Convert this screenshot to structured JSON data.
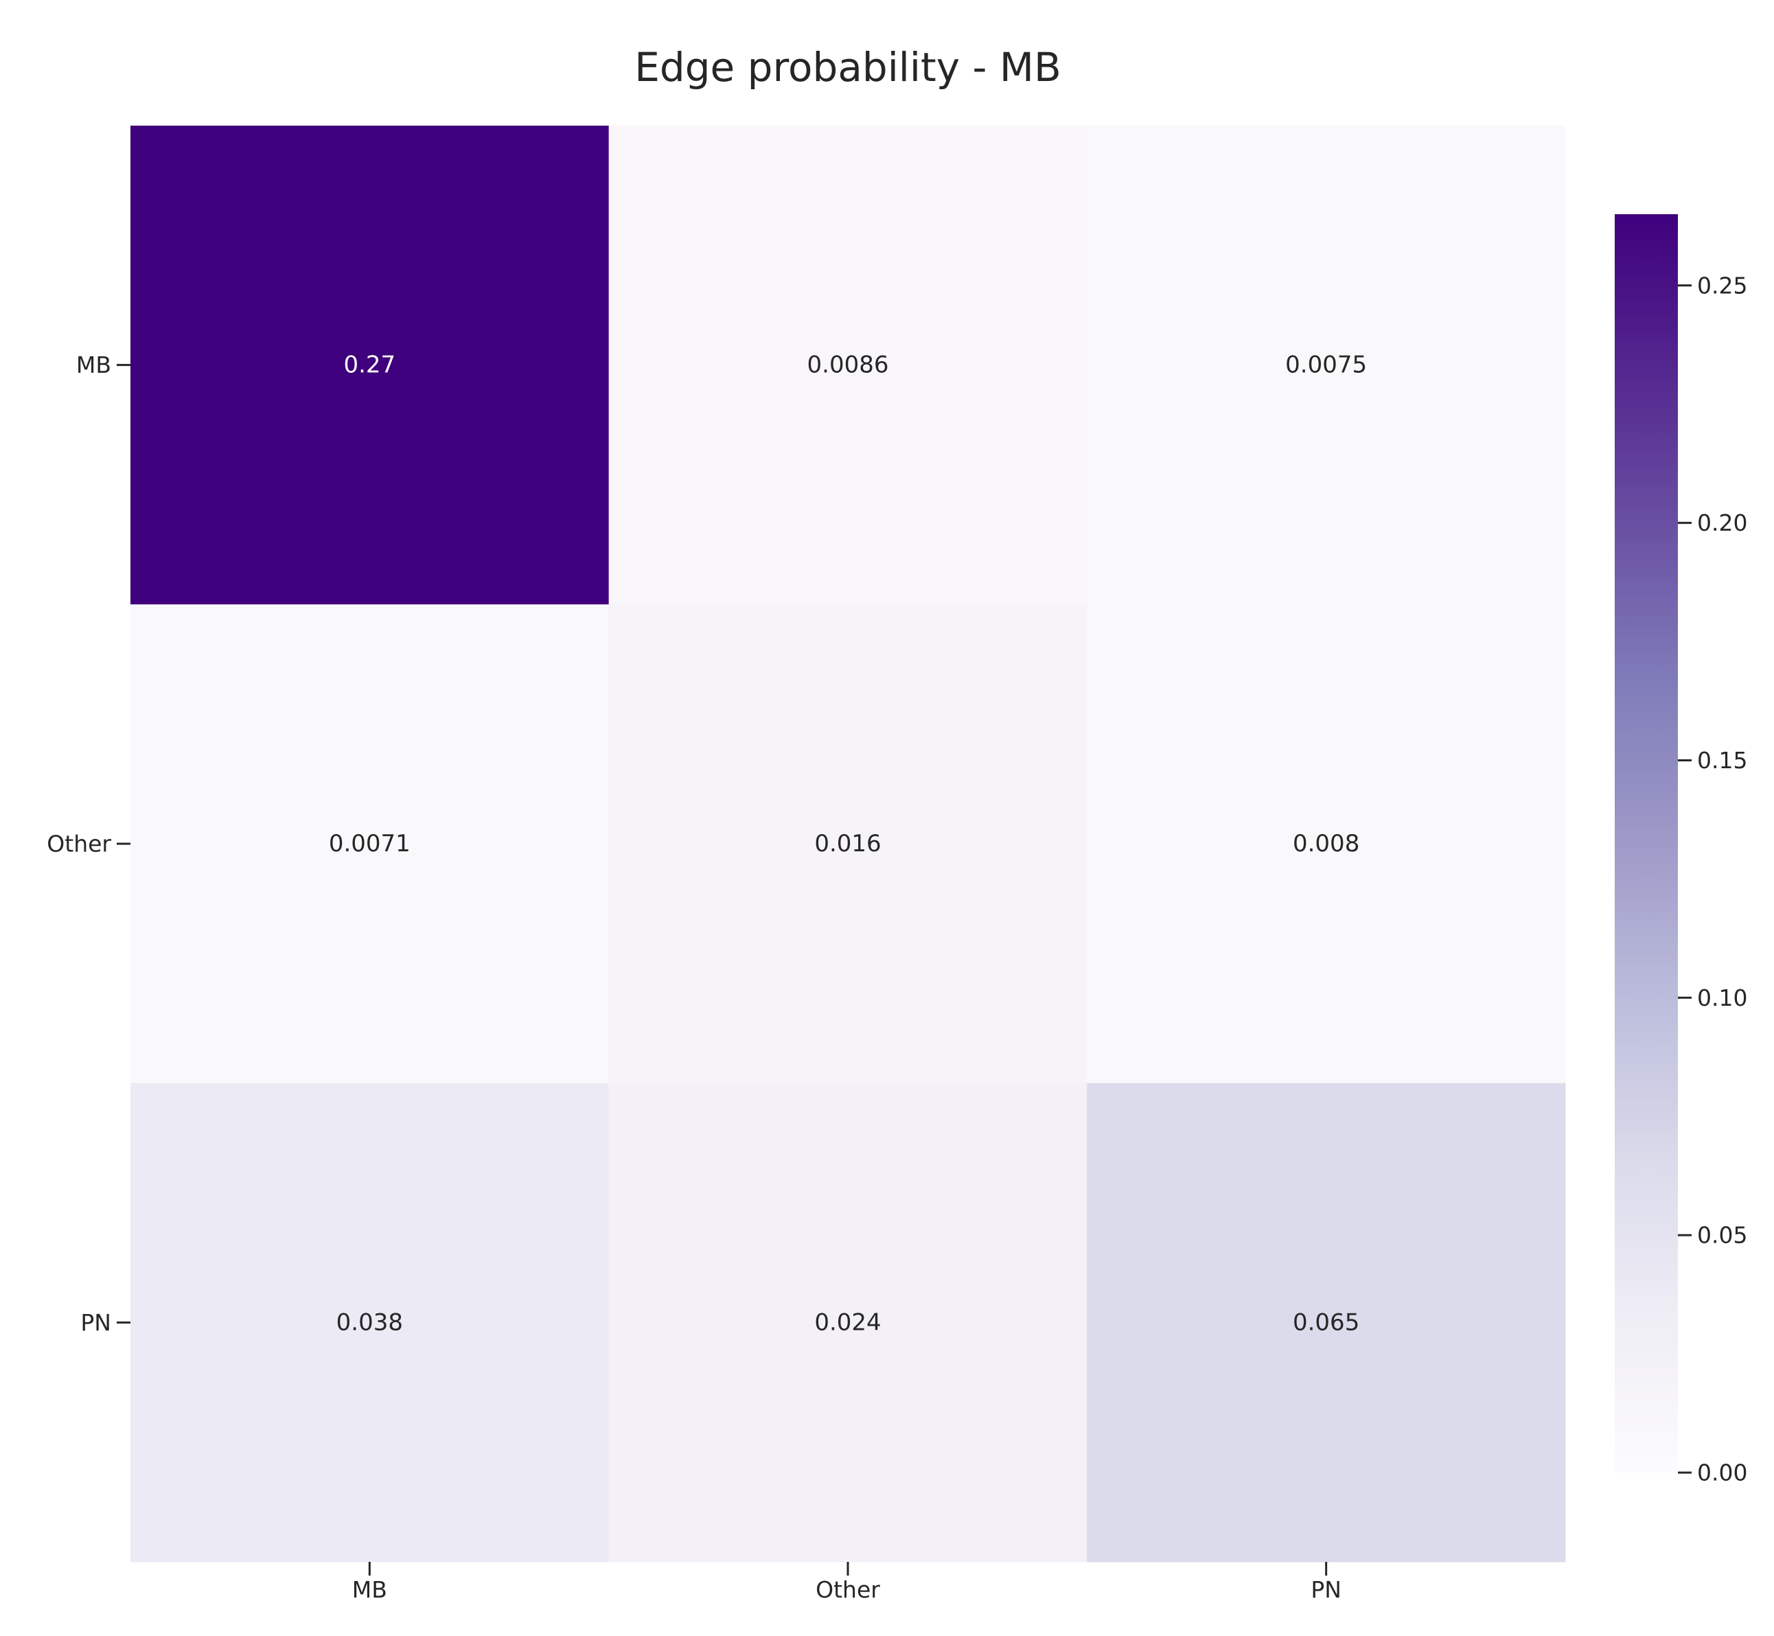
{
  "chart_data": {
    "type": "heatmap",
    "title": "Edge probability - MB",
    "x_categories": [
      "MB",
      "Other",
      "PN"
    ],
    "y_categories": [
      "MB",
      "Other",
      "PN"
    ],
    "values": [
      [
        0.27,
        0.0086,
        0.0075
      ],
      [
        0.0071,
        0.016,
        0.008
      ],
      [
        0.038,
        0.024,
        0.065
      ]
    ],
    "cell_labels": [
      [
        "0.27",
        "0.0086",
        "0.0075"
      ],
      [
        "0.0071",
        "0.016",
        "0.008"
      ],
      [
        "0.038",
        "0.024",
        "0.065"
      ]
    ],
    "xlabel": "",
    "ylabel": "",
    "colormap": "Purples",
    "colorbar": {
      "range": [
        0.0,
        0.265
      ],
      "ticks": [
        0.0,
        0.05,
        0.1,
        0.15,
        0.2,
        0.25
      ],
      "tick_labels": [
        "0.00",
        "0.05",
        "0.10",
        "0.15",
        "0.20",
        "0.25"
      ]
    },
    "grid": false,
    "legend": "colorbar-right"
  }
}
